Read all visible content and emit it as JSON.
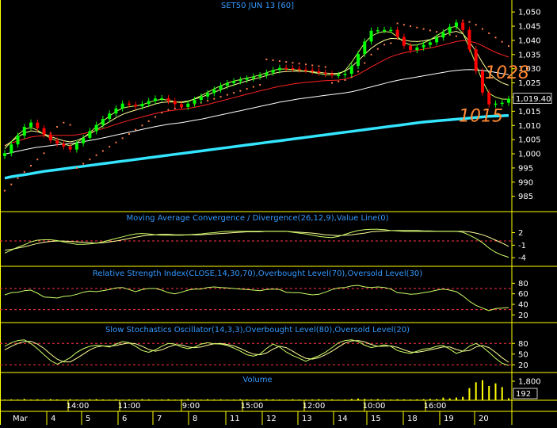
{
  "title": "SET50 JUN 13   [60]",
  "colors": {
    "background": "#000000",
    "frame": "#ffff00",
    "text": "#ffffff",
    "title": "#3399ff",
    "up_candle": "#00ff00",
    "down_candle": "#ff0000",
    "ma_fast": "#ccff66",
    "ma_mid": "#ffff99",
    "ma_red": "#ff2222",
    "ma_long": "#ffffff",
    "ma_cyan": "#33e5ff",
    "sar": "#ff7a4a",
    "annotation": "#ff8833",
    "level": "#ff3344",
    "indicator_line": "#ccff66",
    "indicator_signal": "#ffff99",
    "volume": "#ffff00"
  },
  "price_panel": {
    "ylim": [
      981,
      1052
    ],
    "y_ticks": [
      "1,050",
      "1,045",
      "1,040",
      "1,035",
      "1,030",
      "1,025",
      "1,020",
      "1,015",
      "1,010",
      "1,005",
      "1,000",
      "995",
      "990",
      "985"
    ],
    "last_price_label": "1,019.40",
    "last_price": 1019.4,
    "annotations": [
      {
        "text": "1028",
        "value": 1028
      },
      {
        "text": "1015",
        "value": 1015
      }
    ]
  },
  "macd_panel": {
    "title": "Moving Average Convergence / Divergence(26,12,9),Value Line(0)",
    "ylim": [
      -5.5,
      4
    ],
    "y_ticks": [
      "2",
      "-1",
      "-4"
    ],
    "level": 0
  },
  "rsi_panel": {
    "title": "Relative Strength Index(CLOSE,14,30,70),Overbought Level(70),Oversold Level(30)",
    "ylim": [
      10,
      88
    ],
    "y_ticks": [
      "80",
      "60",
      "40",
      "20"
    ],
    "levels": [
      70,
      30
    ]
  },
  "stoch_panel": {
    "title": "Slow Stochastics Oscillator(14,3,3),Overbought Level(80),Oversold Level(20)",
    "ylim": [
      5,
      105
    ],
    "y_ticks": [
      "80",
      "50",
      "20"
    ],
    "levels": [
      80,
      20
    ]
  },
  "volume_panel": {
    "title": "Volume",
    "y_ticks": [
      "1,800"
    ],
    "last_label": "192",
    "ymax": 2400
  },
  "x_axis": {
    "time_labels": [
      "14:00",
      "11:00",
      "9:00",
      "15:00",
      "12:00",
      "10:00",
      "16:00"
    ],
    "date_labels": [
      "Mar",
      "4",
      "5",
      "6",
      "7",
      "8",
      "11",
      "12",
      "13",
      "14",
      "15",
      "18",
      "19",
      "20"
    ]
  },
  "chart_data": {
    "type": "candlestick",
    "close": [
      1000.2,
      1003.3,
      1006.4,
      1009.5,
      1011.0,
      1009.0,
      1006.8,
      1004.7,
      1003.6,
      1002.6,
      1001.5,
      1003.7,
      1005.6,
      1008.0,
      1010.2,
      1012.3,
      1014.2,
      1016.0,
      1017.7,
      1017.3,
      1016.7,
      1017.6,
      1018.6,
      1019.5,
      1019.6,
      1018.6,
      1017.5,
      1016.5,
      1017.7,
      1019.0,
      1020.2,
      1021.4,
      1022.7,
      1024.0,
      1024.9,
      1025.6,
      1026.1,
      1026.6,
      1027.2,
      1027.7,
      1028.6,
      1029.5,
      1030.3,
      1030.2,
      1030.0,
      1029.7,
      1029.5,
      1029.1,
      1028.6,
      1028.2,
      1027.7,
      1027.8,
      1028.2,
      1031.0,
      1035.2,
      1039.6,
      1043.4,
      1043.6,
      1043.7,
      1043.7,
      1041.2,
      1038.1,
      1036.6,
      1037.5,
      1038.4,
      1039.3,
      1041.0,
      1042.8,
      1044.8,
      1046.3,
      1043.7,
      1036.8,
      1029.2,
      1021.6,
      1017.4,
      1017.7,
      1018.0,
      1019.4
    ],
    "ma_fast": [
      1001.8,
      1004.3,
      1006.7,
      1008.6,
      1009.3,
      1008.3,
      1006.8,
      1005.5,
      1004.5,
      1003.4,
      1002.8,
      1003.9,
      1005.6,
      1007.5,
      1009.6,
      1011.5,
      1013.3,
      1014.9,
      1016.1,
      1016.6,
      1016.9,
      1017.3,
      1018.1,
      1018.8,
      1019.2,
      1018.9,
      1018.4,
      1018.0,
      1018.4,
      1019.4,
      1020.5,
      1021.7,
      1022.9,
      1024.0,
      1024.9,
      1025.6,
      1026.2,
      1026.7,
      1027.2,
      1027.8,
      1028.6,
      1029.4,
      1029.9,
      1029.9,
      1029.7,
      1029.4,
      1029.1,
      1028.7,
      1028.3,
      1027.9,
      1027.8,
      1028.0,
      1029.4,
      1032.3,
      1035.7,
      1039.1,
      1041.5,
      1042.6,
      1043.1,
      1042.9,
      1041.3,
      1039.4,
      1038.3,
      1038.4,
      1039.1,
      1040.2,
      1041.6,
      1043.1,
      1044.5,
      1044.9,
      1042.5,
      1037.4,
      1031.5,
      1025.6,
      1021.3,
      1020.0,
      1019.3,
      1019.2
    ],
    "ma_mid": [
      1002.7,
      1004.3,
      1005.9,
      1007.3,
      1008.1,
      1007.8,
      1007.0,
      1006.1,
      1005.3,
      1004.6,
      1004.2,
      1004.7,
      1005.7,
      1007.0,
      1008.4,
      1009.9,
      1011.3,
      1012.7,
      1013.9,
      1014.7,
      1015.4,
      1016.1,
      1016.8,
      1017.6,
      1018.1,
      1018.3,
      1018.3,
      1018.3,
      1018.6,
      1019.3,
      1020.0,
      1020.8,
      1021.7,
      1022.6,
      1023.5,
      1024.3,
      1025.0,
      1025.7,
      1026.3,
      1026.9,
      1027.6,
      1028.3,
      1028.8,
      1029.0,
      1029.1,
      1029.1,
      1029.1,
      1028.9,
      1028.7,
      1028.5,
      1028.3,
      1028.4,
      1029.1,
      1030.7,
      1032.8,
      1035.1,
      1037.2,
      1038.8,
      1040.0,
      1040.7,
      1040.6,
      1040.1,
      1039.7,
      1039.6,
      1039.8,
      1040.3,
      1041.0,
      1041.8,
      1042.7,
      1043.2,
      1042.3,
      1039.6,
      1036.1,
      1032.1,
      1028.6,
      1026.4,
      1025.0,
      1024.2
    ],
    "ma_red": [
      1003.0,
      1003.8,
      1004.5,
      1005.2,
      1005.9,
      1006.2,
      1006.4,
      1006.5,
      1006.5,
      1006.5,
      1006.5,
      1006.7,
      1007.1,
      1007.6,
      1008.2,
      1008.9,
      1009.6,
      1010.4,
      1011.1,
      1011.8,
      1012.4,
      1013.0,
      1013.6,
      1014.2,
      1014.7,
      1015.1,
      1015.4,
      1015.7,
      1016.0,
      1016.4,
      1016.9,
      1017.4,
      1018.0,
      1018.6,
      1019.2,
      1019.8,
      1020.4,
      1021.0,
      1021.6,
      1022.2,
      1022.7,
      1023.3,
      1023.8,
      1024.2,
      1024.6,
      1024.9,
      1025.2,
      1025.4,
      1025.6,
      1025.8,
      1025.9,
      1026.0,
      1026.3,
      1027.0,
      1028.0,
      1029.3,
      1030.6,
      1031.9,
      1033.1,
      1034.2,
      1035.0,
      1035.6,
      1036.1,
      1036.5,
      1036.9,
      1037.3,
      1037.8,
      1038.4,
      1039.0,
      1039.6,
      1039.9,
      1039.7,
      1039.1,
      1038.1,
      1036.9,
      1035.8,
      1034.9,
      1034.1
    ],
    "ma_long": [
      999.9,
      1000.4,
      1000.9,
      1001.4,
      1001.9,
      1002.3,
      1002.6,
      1002.9,
      1003.2,
      1003.4,
      1003.6,
      1003.9,
      1004.3,
      1004.7,
      1005.1,
      1005.6,
      1006.1,
      1006.6,
      1007.1,
      1007.6,
      1008.1,
      1008.6,
      1009.1,
      1009.6,
      1010.0,
      1010.4,
      1010.7,
      1011.0,
      1011.4,
      1011.8,
      1012.2,
      1012.7,
      1013.2,
      1013.7,
      1014.2,
      1014.7,
      1015.2,
      1015.7,
      1016.2,
      1016.7,
      1017.2,
      1017.7,
      1018.2,
      1018.6,
      1019.0,
      1019.4,
      1019.7,
      1020.0,
      1020.3,
      1020.6,
      1020.9,
      1021.2,
      1021.5,
      1021.9,
      1022.4,
      1023.0,
      1023.6,
      1024.2,
      1024.8,
      1025.4,
      1025.9,
      1026.3,
      1026.7,
      1027.1,
      1027.5,
      1027.9,
      1028.3,
      1028.7,
      1029.1,
      1029.4,
      1029.6,
      1029.7,
      1029.6,
      1029.4,
      1029.1,
      1028.7,
      1028.3,
      1027.9
    ],
    "ma_cyan": [
      991.4,
      991.9,
      992.3,
      992.6,
      993.0,
      993.4,
      993.8,
      994.1,
      994.4,
      994.7,
      995.0,
      995.3,
      995.6,
      995.9,
      996.2,
      996.5,
      996.8,
      997.1,
      997.4,
      997.7,
      998.0,
      998.3,
      998.6,
      998.9,
      999.2,
      999.5,
      999.8,
      1000.1,
      1000.4,
      1000.7,
      1001.0,
      1001.3,
      1001.6,
      1001.9,
      1002.2,
      1002.5,
      1002.8,
      1003.1,
      1003.4,
      1003.7,
      1004.0,
      1004.3,
      1004.6,
      1004.9,
      1005.2,
      1005.5,
      1005.8,
      1006.1,
      1006.4,
      1006.7,
      1007.0,
      1007.3,
      1007.6,
      1007.9,
      1008.2,
      1008.5,
      1008.8,
      1009.1,
      1009.4,
      1009.7,
      1010.0,
      1010.3,
      1010.6,
      1010.9,
      1011.2,
      1011.4,
      1011.6,
      1011.8,
      1012.0,
      1012.2,
      1012.4,
      1012.6,
      1012.8,
      1013.0,
      1013.2,
      1013.3,
      1013.4,
      1013.5
    ],
    "sar": [
      987.0,
      989.2,
      991.4,
      993.6,
      995.8,
      998.0,
      1000.2,
      1007.2,
      1009.5,
      1011.0,
      1010.2,
      995.0,
      996.5,
      998.0,
      999.5,
      1001.0,
      1002.5,
      1004.0,
      1005.5,
      1007.0,
      1008.5,
      1010.0,
      1011.5,
      1013.0,
      1014.5,
      1015.5,
      1016.0,
      1016.5,
      1017.0,
      1017.5,
      1018.0,
      1018.7,
      1019.4,
      1020.1,
      1020.8,
      1021.5,
      1022.2,
      1022.9,
      1023.6,
      1024.3,
      1033.3,
      1033.0,
      1032.7,
      1032.4,
      1032.1,
      1031.8,
      1031.5,
      1031.2,
      1030.9,
      1030.6,
      1025.0,
      1025.5,
      1026.0,
      1027.0,
      1029.0,
      1032.0,
      1035.0,
      1037.0,
      1038.5,
      1039.0,
      1046.0,
      1045.5,
      1045.0,
      1044.5,
      1044.0,
      1043.5,
      1043.0,
      1042.5,
      1042.0,
      1041.5,
      1047.0,
      1046.5,
      1045.5,
      1044.0,
      1042.5,
      1041.0,
      1039.5,
      1038.0
    ],
    "macd": [
      -2.9,
      -2.2,
      -1.5,
      -0.9,
      -0.2,
      0.2,
      0.3,
      0.3,
      0.1,
      -0.2,
      -0.5,
      -0.8,
      -0.8,
      -0.7,
      -0.5,
      -0.2,
      0.2,
      0.6,
      1.0,
      1.4,
      1.7,
      1.8,
      1.7,
      1.5,
      1.4,
      1.4,
      1.4,
      1.4,
      1.5,
      1.6,
      1.7,
      1.9,
      2.0,
      2.2,
      2.3,
      2.3,
      2.3,
      2.3,
      2.3,
      2.3,
      2.3,
      2.3,
      2.3,
      2.3,
      2.1,
      1.9,
      1.7,
      1.4,
      1.1,
      0.9,
      0.8,
      1.1,
      1.6,
      2.1,
      2.5,
      2.7,
      2.8,
      2.8,
      2.7,
      2.5,
      2.4,
      2.3,
      2.3,
      2.3,
      2.3,
      2.3,
      2.3,
      2.3,
      2.3,
      2.3,
      2.1,
      1.4,
      0.6,
      -0.4,
      -1.7,
      -2.7,
      -3.4,
      -3.9
    ],
    "macd_signal": [
      -2.2,
      -2.0,
      -1.7,
      -1.4,
      -1.0,
      -0.6,
      -0.3,
      -0.1,
      0.0,
      0.0,
      -0.1,
      -0.2,
      -0.3,
      -0.4,
      -0.5,
      -0.4,
      -0.2,
      0.0,
      0.3,
      0.6,
      0.9,
      1.2,
      1.4,
      1.5,
      1.6,
      1.6,
      1.5,
      1.5,
      1.5,
      1.5,
      1.5,
      1.6,
      1.7,
      1.8,
      1.9,
      2.0,
      2.1,
      2.2,
      2.2,
      2.2,
      2.3,
      2.3,
      2.3,
      2.3,
      2.2,
      2.1,
      2.0,
      1.9,
      1.7,
      1.5,
      1.4,
      1.3,
      1.4,
      1.5,
      1.7,
      1.9,
      2.2,
      2.3,
      2.4,
      2.5,
      2.5,
      2.5,
      2.5,
      2.5,
      2.4,
      2.4,
      2.3,
      2.3,
      2.3,
      2.3,
      2.3,
      2.2,
      1.9,
      1.5,
      0.9,
      0.2,
      -0.5,
      -1.3
    ],
    "rsi": [
      58,
      62,
      63,
      66,
      67,
      61,
      54,
      53,
      52,
      55,
      56,
      59,
      63,
      65,
      64,
      66,
      68,
      71,
      72,
      68,
      64,
      68,
      70,
      70,
      67,
      62,
      60,
      63,
      67,
      69,
      69,
      72,
      73,
      72,
      71,
      70,
      69,
      68,
      67,
      66,
      68,
      69,
      68,
      63,
      62,
      62,
      60,
      58,
      59,
      63,
      68,
      71,
      72,
      75,
      76,
      73,
      72,
      73,
      72,
      69,
      62,
      61,
      59,
      60,
      62,
      64,
      67,
      69,
      67,
      64,
      56,
      46,
      38,
      33,
      28,
      32,
      33,
      34
    ],
    "stoch": [
      72,
      82,
      88,
      90,
      80,
      65,
      48,
      32,
      22,
      30,
      40,
      55,
      65,
      72,
      75,
      73,
      70,
      78,
      85,
      82,
      72,
      60,
      55,
      62,
      72,
      80,
      78,
      70,
      65,
      70,
      78,
      82,
      79,
      78,
      74,
      67,
      58,
      48,
      44,
      50,
      66,
      78,
      70,
      56,
      46,
      38,
      30,
      38,
      45,
      55,
      68,
      82,
      88,
      90,
      85,
      75,
      68,
      72,
      76,
      72,
      60,
      55,
      52,
      58,
      64,
      66,
      72,
      74,
      64,
      52,
      58,
      72,
      80,
      70,
      55,
      38,
      24,
      18
    ],
    "stoch_signal": [
      62,
      72,
      80,
      85,
      86,
      78,
      66,
      50,
      36,
      28,
      28,
      38,
      50,
      62,
      70,
      73,
      72,
      74,
      78,
      81,
      79,
      72,
      63,
      58,
      62,
      70,
      76,
      76,
      70,
      68,
      70,
      75,
      79,
      80,
      77,
      73,
      66,
      57,
      50,
      48,
      53,
      64,
      72,
      68,
      58,
      47,
      38,
      36,
      40,
      48,
      58,
      70,
      81,
      87,
      88,
      84,
      77,
      72,
      72,
      73,
      69,
      62,
      56,
      55,
      58,
      62,
      66,
      70,
      70,
      63,
      58,
      60,
      70,
      74,
      68,
      55,
      40,
      27
    ],
    "volume": [
      60,
      80,
      70,
      120,
      65,
      90,
      75,
      110,
      80,
      60,
      95,
      70,
      55,
      85,
      105,
      75,
      65,
      90,
      60,
      80,
      70,
      100,
      85,
      60,
      75,
      95,
      65,
      80,
      110,
      70,
      60,
      90,
      75,
      85,
      65,
      70,
      95,
      80,
      60,
      75,
      105,
      85,
      70,
      60,
      90,
      75,
      65,
      80,
      100,
      70,
      85,
      60,
      75,
      120,
      160,
      130,
      90,
      110,
      80,
      70,
      95,
      85,
      75,
      90,
      100,
      130,
      110,
      250,
      180,
      260,
      320,
      1150,
      1700,
      1900,
      1350,
      1600,
      1250,
      192
    ]
  }
}
